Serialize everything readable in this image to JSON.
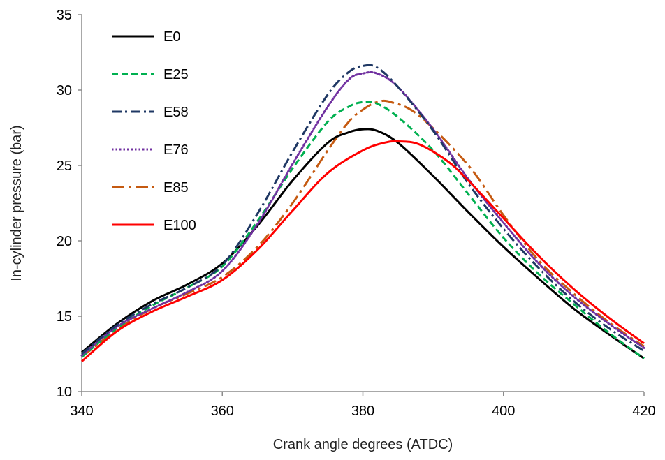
{
  "chart_data": {
    "type": "line",
    "title": "",
    "xlabel": "Crank angle degrees (ATDC)",
    "ylabel": "In-cylinder pressure  (bar)",
    "xlim": [
      340,
      420
    ],
    "ylim": [
      10,
      35
    ],
    "x_ticks": [
      340,
      360,
      380,
      400,
      420
    ],
    "y_ticks": [
      10,
      15,
      20,
      25,
      30,
      35
    ],
    "x_tick_labels": [
      "340",
      "360",
      "380",
      "400",
      "420"
    ],
    "y_tick_labels": [
      "10",
      "15",
      "20",
      "25",
      "30",
      "35"
    ],
    "grid": false,
    "legend_position": "top-left",
    "series": [
      {
        "name": "E0",
        "color": "#000000",
        "dash": "solid",
        "x": [
          340,
          345,
          350,
          355,
          360,
          365,
          370,
          375,
          378,
          380,
          382,
          385,
          390,
          395,
          400,
          405,
          410,
          415,
          420
        ],
        "y": [
          12.6,
          14.5,
          16.0,
          17.1,
          18.5,
          21.0,
          24.0,
          26.5,
          27.2,
          27.4,
          27.3,
          26.5,
          24.3,
          21.9,
          19.6,
          17.5,
          15.5,
          13.8,
          12.2
        ]
      },
      {
        "name": "E25",
        "color": "#00B050",
        "dash": "dashed",
        "x": [
          340,
          345,
          350,
          355,
          360,
          365,
          370,
          375,
          378,
          380,
          382,
          385,
          390,
          395,
          400,
          405,
          410,
          415,
          420
        ],
        "y": [
          12.3,
          14.2,
          15.7,
          16.9,
          18.3,
          21.3,
          24.8,
          27.9,
          28.9,
          29.2,
          29.1,
          28.2,
          26.0,
          23.1,
          20.2,
          17.8,
          15.8,
          13.9,
          12.2
        ]
      },
      {
        "name": "E58",
        "color": "#1F3864",
        "dash": "dashdot",
        "x": [
          340,
          345,
          350,
          355,
          360,
          365,
          370,
          375,
          378,
          380,
          382,
          385,
          390,
          395,
          400,
          405,
          410,
          415,
          420
        ],
        "y": [
          12.5,
          14.4,
          15.8,
          16.9,
          18.4,
          21.8,
          25.9,
          29.7,
          31.2,
          31.6,
          31.5,
          30.2,
          27.3,
          23.8,
          20.8,
          18.2,
          16.0,
          14.2,
          12.7
        ]
      },
      {
        "name": "E76",
        "color": "#7030A0",
        "dash": "dotted",
        "x": [
          340,
          345,
          350,
          355,
          360,
          365,
          370,
          375,
          378,
          380,
          382,
          385,
          390,
          395,
          400,
          405,
          410,
          415,
          420
        ],
        "y": [
          12.4,
          14.3,
          15.5,
          16.6,
          18.0,
          21.1,
          25.1,
          28.9,
          30.7,
          31.1,
          31.1,
          30.2,
          27.4,
          24.1,
          21.2,
          18.5,
          16.3,
          14.5,
          12.9
        ]
      },
      {
        "name": "E85",
        "color": "#C55A11",
        "dash": "longdashdot",
        "x": [
          340,
          345,
          350,
          355,
          360,
          365,
          370,
          375,
          378,
          380,
          382,
          384,
          388,
          395,
          400,
          405,
          410,
          415,
          420
        ],
        "y": [
          12.3,
          14.1,
          15.5,
          16.5,
          17.6,
          19.6,
          22.5,
          26.0,
          27.9,
          28.7,
          29.2,
          29.2,
          28.3,
          25.0,
          21.7,
          18.7,
          16.5,
          14.6,
          13.0
        ]
      },
      {
        "name": "E100",
        "color": "#FF0000",
        "dash": "solid",
        "x": [
          340,
          345,
          350,
          355,
          360,
          365,
          370,
          375,
          380,
          383,
          385,
          388,
          392,
          395,
          400,
          405,
          410,
          415,
          420
        ],
        "y": [
          12.0,
          14.0,
          15.3,
          16.3,
          17.4,
          19.4,
          22.0,
          24.5,
          26.0,
          26.5,
          26.6,
          26.4,
          25.3,
          24.0,
          21.5,
          19.0,
          16.8,
          14.9,
          13.2
        ]
      }
    ]
  }
}
